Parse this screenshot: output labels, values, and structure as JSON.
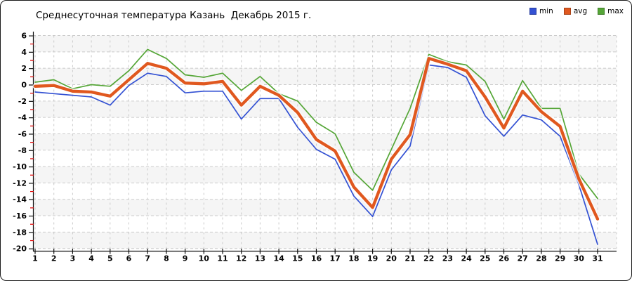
{
  "window": {
    "title": "Среднесуточная температура Казань  Декабрь 2015 г."
  },
  "chart_data": {
    "type": "line",
    "title": "Среднесуточная температура Казань  Декабрь 2015 г.",
    "xlabel": "",
    "ylabel": "",
    "x": [
      1,
      2,
      3,
      4,
      5,
      6,
      7,
      8,
      9,
      10,
      11,
      12,
      13,
      14,
      15,
      16,
      17,
      18,
      19,
      20,
      21,
      22,
      23,
      24,
      25,
      26,
      27,
      28,
      29,
      30,
      31
    ],
    "ylim": [
      -20,
      6
    ],
    "ytick_step": 2,
    "grid": true,
    "legend_position": "top-right",
    "series": [
      {
        "name": "min",
        "color": "#3351d3",
        "width": 1.7,
        "values": [
          -0.9,
          -1.1,
          -1.3,
          -1.5,
          -2.5,
          -0.1,
          1.4,
          1.0,
          -1.0,
          -0.8,
          -0.8,
          -4.2,
          -1.7,
          -1.7,
          -5.2,
          -7.9,
          -9.1,
          -13.6,
          -16.1,
          -10.4,
          -7.5,
          2.4,
          2.1,
          0.9,
          -3.8,
          -6.3,
          -3.7,
          -4.3,
          -6.3,
          -12.2,
          -19.5
        ]
      },
      {
        "name": "avg",
        "color": "#e0581f",
        "width": 4.3,
        "casing": true,
        "values": [
          -0.2,
          -0.1,
          -0.8,
          -0.9,
          -1.4,
          0.6,
          2.6,
          2.0,
          0.2,
          0.1,
          0.4,
          -2.5,
          -0.2,
          -1.3,
          -3.4,
          -6.7,
          -8.1,
          -12.5,
          -15.0,
          -9.1,
          -6.1,
          3.2,
          2.5,
          1.7,
          -1.5,
          -5.3,
          -0.8,
          -3.3,
          -5.1,
          -11.5,
          -16.4
        ]
      },
      {
        "name": "max",
        "color": "#55a637",
        "width": 1.7,
        "values": [
          0.3,
          0.6,
          -0.5,
          0.0,
          -0.2,
          1.7,
          4.3,
          3.2,
          1.2,
          0.9,
          1.4,
          -0.7,
          1.0,
          -1.1,
          -2.0,
          -4.6,
          -6.0,
          -10.7,
          -12.9,
          -7.9,
          -2.9,
          3.7,
          2.8,
          2.4,
          0.4,
          -4.2,
          0.5,
          -2.9,
          -2.9,
          -10.9,
          -13.9
        ]
      }
    ],
    "style": {
      "grid_color": "#cbcbcb",
      "band_color": "#f5f5f5",
      "axis_color": "#111111",
      "minor_tick_color": "#e00000",
      "text_color": "#000000"
    }
  }
}
